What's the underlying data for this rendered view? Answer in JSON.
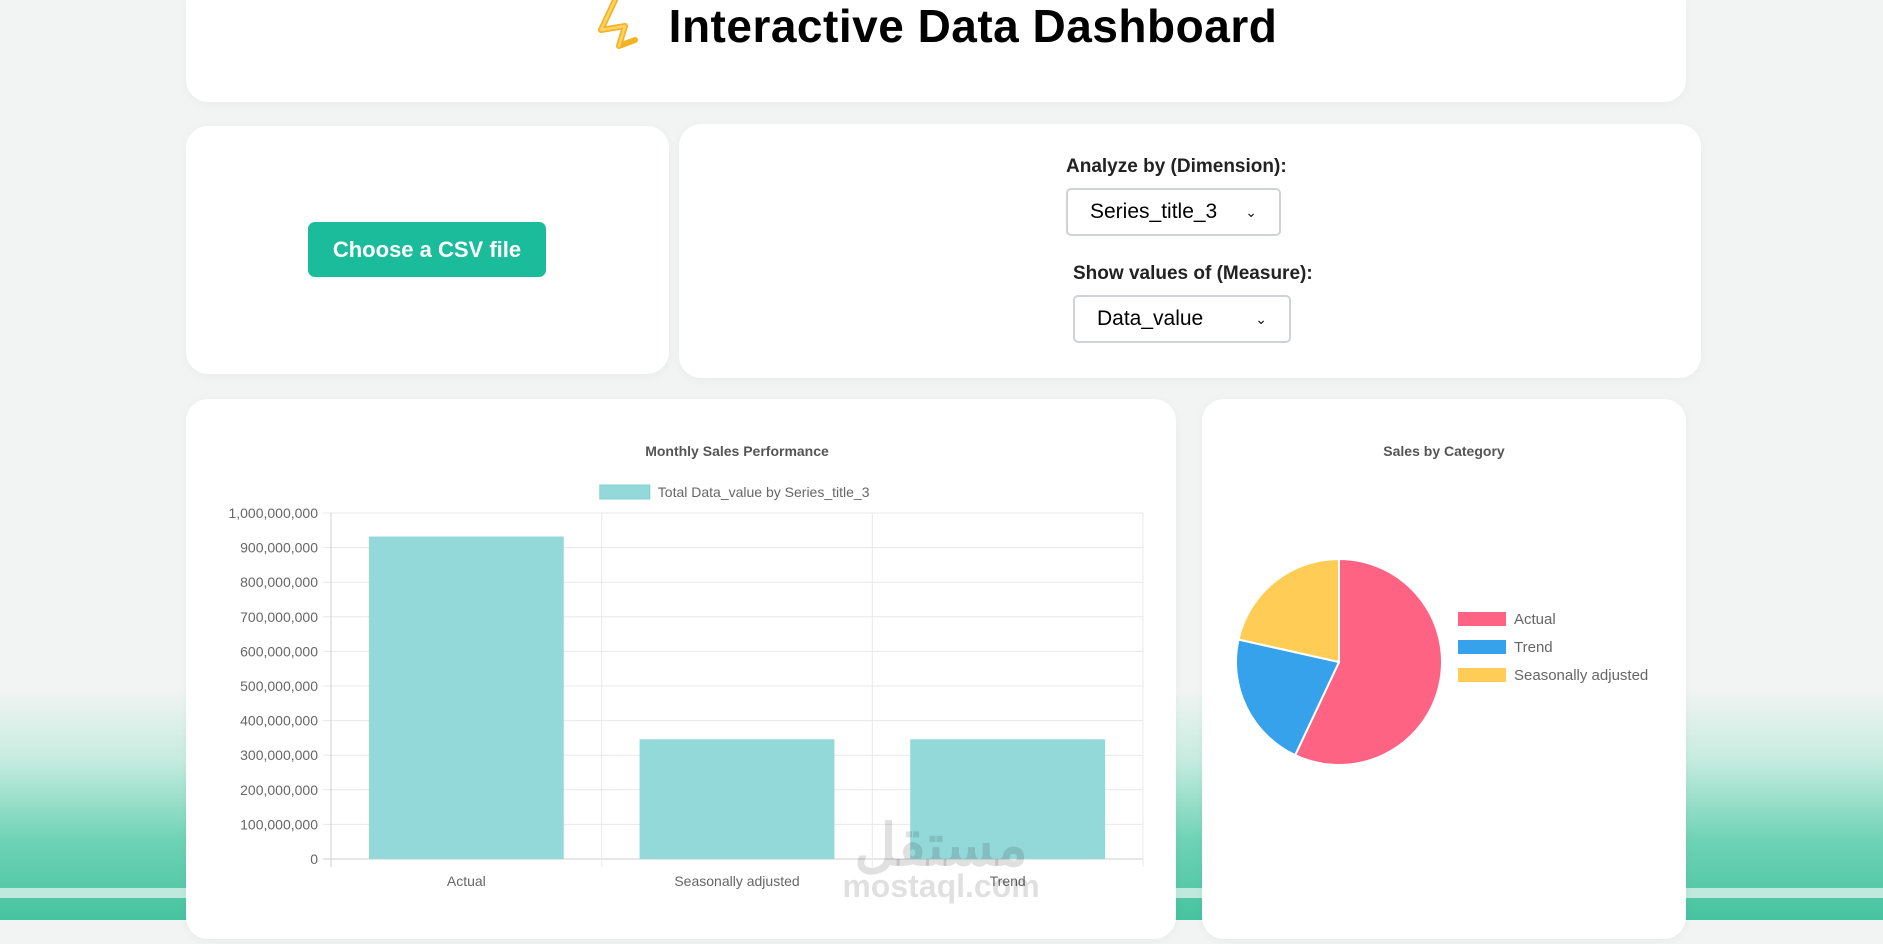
{
  "header": {
    "title": "Interactive Data Dashboard",
    "icon": "lightning-icon"
  },
  "upload": {
    "button_label": "Choose a CSV file"
  },
  "controls": {
    "dimension_label": "Analyze by (Dimension):",
    "dimension_value": "Series_title_3",
    "measure_label": "Show values of (Measure):",
    "measure_value": "Data_value"
  },
  "watermark": {
    "arabic": "مستقل",
    "latin": "mostaql.com"
  },
  "colors": {
    "accent": "#1abc9c",
    "bar_fill": "#94d9da",
    "pie_actual": "#ff6384",
    "pie_trend": "#36a2eb",
    "pie_seasonal": "#ffcd56"
  },
  "chart_data": [
    {
      "type": "bar",
      "title": "Monthly Sales Performance",
      "legend": [
        "Total Data_value by Series_title_3"
      ],
      "legend_placement": "top",
      "categories": [
        "Actual",
        "Seasonally adjusted",
        "Trend"
      ],
      "series": [
        {
          "name": "Total Data_value by Series_title_3",
          "values": [
            932000000,
            346000000,
            346000000
          ]
        }
      ],
      "ylim": [
        0,
        1000000000
      ],
      "yticks": [
        "0",
        "100,000,000",
        "200,000,000",
        "300,000,000",
        "400,000,000",
        "500,000,000",
        "600,000,000",
        "700,000,000",
        "800,000,000",
        "900,000,000",
        "1,000,000,000"
      ],
      "xlabel": "",
      "ylabel": "",
      "grid": true
    },
    {
      "type": "pie",
      "title": "Sales by Category",
      "legend_placement": "right",
      "labels": [
        "Actual",
        "Trend",
        "Seasonally adjusted"
      ],
      "values": [
        57,
        21.5,
        21.5
      ]
    }
  ]
}
